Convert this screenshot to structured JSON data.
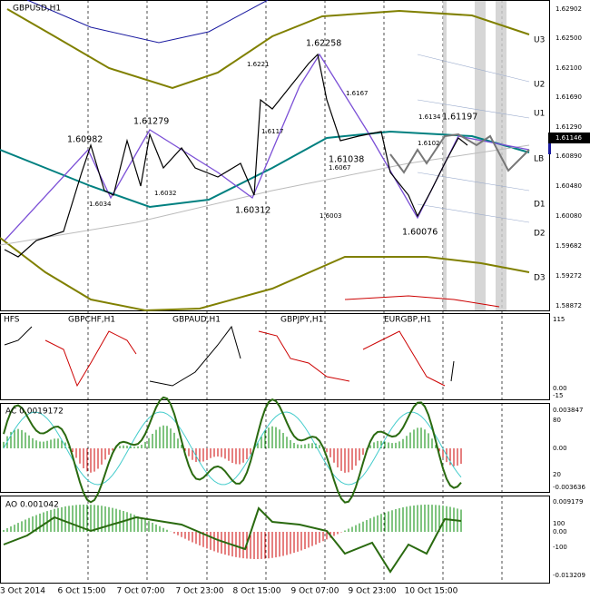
{
  "main": {
    "symbol": "GBPUSD,H1",
    "price_axis": [
      "1.62902",
      "1.62500",
      "1.62100",
      "1.61690",
      "1.61290",
      "1.60890",
      "1.60480",
      "1.60080",
      "1.59682",
      "1.59272",
      "1.58872"
    ],
    "current_price": "1.61146",
    "levels": [
      "U3",
      "U2",
      "U1",
      "LB",
      "D1",
      "D2",
      "D3"
    ],
    "swing_labels": [
      "1.62258",
      "1.61279",
      "1.60982",
      "1.61197",
      "1.61038",
      "1.60312",
      "1.60076"
    ],
    "small_labels": [
      "1.6221",
      "1.6167",
      "1.6134",
      "1.6117",
      "1.6102",
      "1.6067",
      "1.6032",
      "1.6034",
      "1.6003"
    ]
  },
  "hfs": {
    "title": "HFS",
    "symbols": [
      "GBPCHF,H1",
      "GBPAUD,H1",
      "GBPJPY,H1",
      "EURGBP,H1"
    ],
    "axis": [
      "115",
      "0.00",
      "-15"
    ]
  },
  "ac": {
    "title": "AC 0.0019172",
    "axis": [
      "0.003847",
      "80",
      "0.00",
      "20",
      "-0.003636"
    ]
  },
  "ao": {
    "title": "AO 0.001042",
    "axis": [
      "0.009179",
      "100",
      "0.00",
      "-100",
      "-0.013209"
    ]
  },
  "time_axis": [
    "3 Oct 2014",
    "6 Oct 15:00",
    "7 Oct 07:00",
    "7 Oct 23:00",
    "8 Oct 15:00",
    "9 Oct 07:00",
    "9 Oct 23:00",
    "10 Oct 15:00"
  ]
}
